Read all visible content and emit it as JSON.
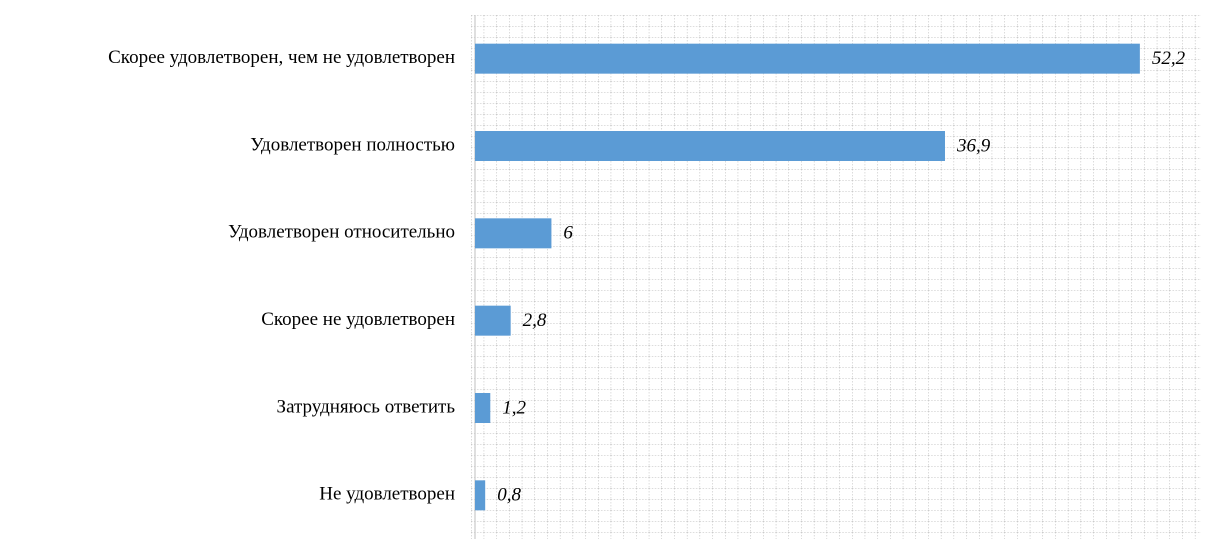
{
  "chart_data": {
    "type": "bar",
    "orientation": "horizontal",
    "categories": [
      "Скорее удовлетворен, чем не удовлетворен",
      "Удовлетворен полностью",
      "Удовлетворен относительно",
      "Скорее не удовлетворен",
      "Затрудняюсь ответить",
      "Не удовлетворен"
    ],
    "values": [
      52.2,
      36.9,
      6,
      2.8,
      1.2,
      0.8
    ],
    "value_labels": [
      "52,2",
      "36,9",
      "6",
      "2,8",
      "1,2",
      "0,8"
    ],
    "color": "#5b9bd5",
    "xlim": [
      0,
      57
    ],
    "grid": true
  }
}
